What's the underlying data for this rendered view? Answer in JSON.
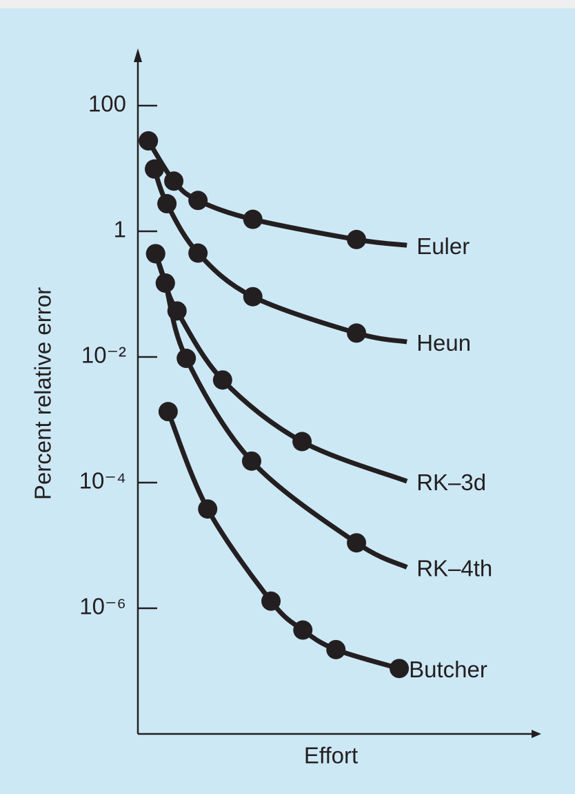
{
  "chart_data": {
    "type": "line",
    "y_label": "Percent relative error",
    "x_label": "Effort",
    "log_y": true,
    "xlim": [
      0,
      100
    ],
    "ylim": [
      1e-08,
      1000
    ],
    "yticks": [
      100,
      1,
      {
        "value": 0.01,
        "label": "10⁻²"
      },
      {
        "value": 0.0001,
        "label": "10⁻⁴"
      },
      {
        "value": 1e-06,
        "label": "10⁻⁶"
      }
    ],
    "series": [
      {
        "name": "Euler",
        "color": "#231f20",
        "x": [
          2.6,
          8.9,
          14.9,
          28.5,
          54.2,
          66.7
        ],
        "values": [
          27.5,
          6.3,
          3.1,
          1.55,
          0.74,
          0.6
        ],
        "marker": [
          true,
          true,
          true,
          true,
          true,
          false
        ]
      },
      {
        "name": "Heun",
        "color": "#231f20",
        "x": [
          4.1,
          7.2,
          14.9,
          28.5,
          54.2,
          66.7
        ],
        "values": [
          9.8,
          2.75,
          0.45,
          0.091,
          0.024,
          0.0174
        ],
        "marker": [
          true,
          true,
          true,
          true,
          true,
          false
        ]
      },
      {
        "name": "RK–3d",
        "color": "#231f20",
        "x": [
          4.4,
          6.8,
          9.7,
          21.0,
          40.7,
          66.7
        ],
        "values": [
          0.44,
          0.15,
          0.054,
          0.0043,
          0.00045,
          0.000105
        ],
        "marker": [
          true,
          true,
          true,
          true,
          true,
          false
        ]
      },
      {
        "name": "RK–4th",
        "color": "#231f20",
        "x": [
          4.4,
          6.8,
          12.0,
          28.2,
          54.2,
          66.7
        ],
        "values": [
          0.44,
          0.15,
          0.0095,
          0.00022,
          1.1e-05,
          4.5e-06
        ],
        "marker": [
          true,
          true,
          true,
          true,
          true,
          false
        ]
      },
      {
        "name": "Butcher",
        "color": "#231f20",
        "x": [
          7.5,
          17.3,
          33.0,
          40.9,
          49.1,
          64.8
        ],
        "values": [
          0.00135,
          3.8e-05,
          1.3e-06,
          4.5e-07,
          2.2e-07,
          1.1e-07
        ],
        "marker": [
          true,
          true,
          true,
          true,
          true,
          true
        ]
      }
    ]
  }
}
